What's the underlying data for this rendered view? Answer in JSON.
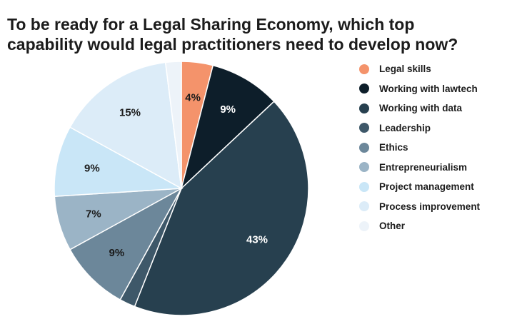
{
  "chart_data": {
    "type": "pie",
    "title": "To be ready for a Legal Sharing Economy, which top\ncapability would legal practitioners need to develop now?",
    "legend_position": "right",
    "slices": [
      {
        "name": "Legal skills",
        "value": 4,
        "label": "4%",
        "color": "#f4936b",
        "label_color": "#1a1a1a"
      },
      {
        "name": "Working with lawtech",
        "value": 9,
        "label": "9%",
        "color": "#0d1e2a",
        "label_color": "#ffffff"
      },
      {
        "name": "Working with data",
        "value": 43,
        "label": "43%",
        "color": "#27404f",
        "label_color": "#ffffff"
      },
      {
        "name": "Leadership",
        "value": 2,
        "label": "",
        "color": "#3e5869",
        "label_color": "#ffffff"
      },
      {
        "name": "Ethics",
        "value": 9,
        "label": "9%",
        "color": "#6c879a",
        "label_color": "#1a1a1a"
      },
      {
        "name": "Entrepreneurialism",
        "value": 7,
        "label": "7%",
        "color": "#9bb4c6",
        "label_color": "#1a1a1a"
      },
      {
        "name": "Project management",
        "value": 9,
        "label": "9%",
        "color": "#c9e6f7",
        "label_color": "#1a1a1a"
      },
      {
        "name": "Process improvement",
        "value": 15,
        "label": "15%",
        "color": "#dcecf8",
        "label_color": "#1a1a1a"
      },
      {
        "name": "Other",
        "value": 2,
        "label": "",
        "color": "#edf3f9",
        "label_color": "#1a1a1a"
      }
    ]
  }
}
